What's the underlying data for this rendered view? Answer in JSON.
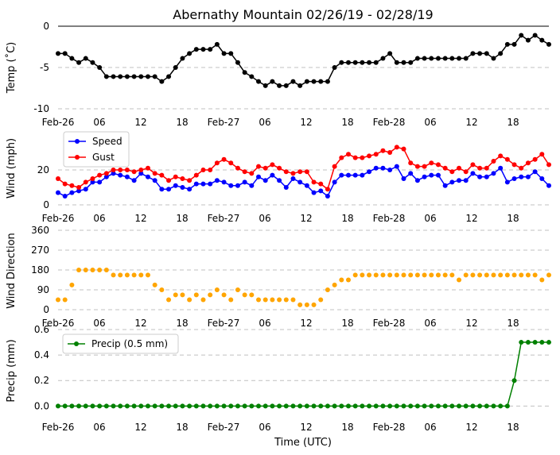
{
  "title": "Abernathy Mountain 02/26/19 - 02/28/19",
  "xlabel": "Time (UTC)",
  "x_tick_labels": [
    "Feb-26",
    "06",
    "12",
    "18",
    "Feb-27",
    "06",
    "12",
    "18",
    "Feb-28",
    "06",
    "12",
    "18"
  ],
  "colors": {
    "temp": "#000000",
    "speed": "#0000ff",
    "gust": "#ff0000",
    "direction": "#ffa500",
    "precip": "#008000",
    "grid": "#c0c0c0"
  },
  "chart_data": [
    {
      "type": "line",
      "panel": "temp",
      "ylabel": "Temp (˚C)",
      "ylim": [
        -10,
        0
      ],
      "yticks": [
        -10,
        -5,
        0
      ],
      "xlim": [
        0,
        71
      ],
      "series": [
        {
          "name": "Temp",
          "color": "#000000",
          "values": [
            -3.3,
            -3.3,
            -3.9,
            -4.4,
            -3.9,
            -4.4,
            -5.0,
            -6.1,
            -6.1,
            -6.1,
            -6.1,
            -6.1,
            -6.1,
            -6.1,
            -6.1,
            -6.7,
            -6.1,
            -5.0,
            -3.9,
            -3.3,
            -2.8,
            -2.8,
            -2.8,
            -2.2,
            -3.3,
            -3.3,
            -4.4,
            -5.6,
            -6.1,
            -6.7,
            -7.2,
            -6.7,
            -7.2,
            -7.2,
            -6.7,
            -7.2,
            -6.7,
            -6.7,
            -6.7,
            -6.7,
            -5.0,
            -4.4,
            -4.4,
            -4.4,
            -4.4,
            -4.4,
            -4.4,
            -3.9,
            -3.3,
            -4.4,
            -4.4,
            -4.4,
            -3.9,
            -3.9,
            -3.9,
            -3.9,
            -3.9,
            -3.9,
            -3.9,
            -3.9,
            -3.3,
            -3.3,
            -3.3,
            -3.9,
            -3.3,
            -2.2,
            -2.2,
            -1.1,
            -1.7,
            -1.1,
            -1.7,
            -2.2
          ]
        }
      ]
    },
    {
      "type": "line",
      "panel": "wind",
      "ylabel": "Wind (mph)",
      "ylim": [
        0,
        35
      ],
      "yticks": [
        0,
        20
      ],
      "xlim": [
        0,
        71
      ],
      "legend": "top-left",
      "series": [
        {
          "name": "Speed",
          "color": "#0000ff",
          "values": [
            7,
            5,
            7,
            8,
            9,
            13,
            13,
            16,
            18,
            17,
            16,
            14,
            18,
            16,
            14,
            9,
            9,
            11,
            10,
            9,
            12,
            12,
            12,
            14,
            13,
            11,
            11,
            13,
            11,
            16,
            14,
            17,
            14,
            10,
            15,
            13,
            11,
            7,
            8,
            5,
            13,
            17,
            17,
            17,
            17,
            19,
            21,
            21,
            20,
            22,
            15,
            18,
            14,
            16,
            17,
            17,
            11,
            13,
            14,
            14,
            18,
            16,
            16,
            18,
            21,
            13,
            15,
            16,
            16,
            19,
            15,
            11
          ]
        },
        {
          "name": "Gust",
          "color": "#ff0000",
          "values": [
            15,
            12,
            11,
            10,
            13,
            15,
            17,
            18,
            20,
            20,
            20,
            19,
            20,
            21,
            18,
            17,
            14,
            16,
            15,
            14,
            17,
            20,
            20,
            24,
            26,
            24,
            21,
            19,
            18,
            22,
            21,
            23,
            21,
            19,
            18,
            19,
            19,
            13,
            12,
            9,
            22,
            27,
            29,
            27,
            27,
            28,
            29,
            31,
            30,
            33,
            32,
            24,
            22,
            22,
            24,
            23,
            21,
            19,
            21,
            19,
            23,
            21,
            21,
            25,
            28,
            26,
            23,
            21,
            24,
            26,
            29,
            23
          ]
        }
      ]
    },
    {
      "type": "scatter",
      "panel": "direction",
      "ylabel": "Wind Direction",
      "ylim": [
        0,
        360
      ],
      "yticks": [
        0,
        90,
        180,
        270,
        360
      ],
      "xlim": [
        0,
        71
      ],
      "series": [
        {
          "name": "Direction",
          "color": "#ffa500",
          "values": [
            45,
            45,
            112,
            180,
            180,
            180,
            180,
            180,
            157,
            157,
            157,
            157,
            157,
            157,
            112,
            90,
            45,
            67,
            67,
            45,
            67,
            45,
            67,
            90,
            67,
            45,
            90,
            67,
            67,
            45,
            45,
            45,
            45,
            45,
            45,
            22,
            22,
            22,
            45,
            90,
            112,
            135,
            135,
            157,
            157,
            157,
            157,
            157,
            157,
            157,
            157,
            157,
            157,
            157,
            157,
            157,
            157,
            157,
            135,
            157,
            157,
            157,
            157,
            157,
            157,
            157,
            157,
            157,
            157,
            157,
            135,
            157
          ]
        }
      ]
    },
    {
      "type": "line",
      "panel": "precip",
      "ylabel": "Precip (mm)",
      "ylim": [
        -0.06,
        0.6
      ],
      "yticks": [
        0.0,
        0.2,
        0.4,
        0.6
      ],
      "xlim": [
        0,
        71
      ],
      "legend": "top-left",
      "series": [
        {
          "name": "Precip (0.5 mm)",
          "color": "#008000",
          "values": [
            0,
            0,
            0,
            0,
            0,
            0,
            0,
            0,
            0,
            0,
            0,
            0,
            0,
            0,
            0,
            0,
            0,
            0,
            0,
            0,
            0,
            0,
            0,
            0,
            0,
            0,
            0,
            0,
            0,
            0,
            0,
            0,
            0,
            0,
            0,
            0,
            0,
            0,
            0,
            0,
            0,
            0,
            0,
            0,
            0,
            0,
            0,
            0,
            0,
            0,
            0,
            0,
            0,
            0,
            0,
            0,
            0,
            0,
            0,
            0,
            0,
            0,
            0,
            0,
            0,
            0,
            0.2,
            0.5,
            0.5,
            0.5,
            0.5,
            0.5
          ]
        }
      ]
    }
  ]
}
